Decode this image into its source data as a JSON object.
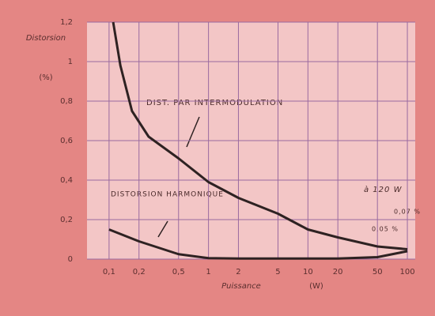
{
  "chart_data": {
    "type": "line",
    "y_label_top": "Distorsion",
    "y_label_unit": "(%)",
    "x_label": "Puissance",
    "x_label_unit": "(W)",
    "xscale": "log",
    "grid": true,
    "xlim": [
      0.06,
      120
    ],
    "ylim": [
      0,
      1.2
    ],
    "xticks": [
      {
        "value": 0.1,
        "label": "0,1"
      },
      {
        "value": 0.2,
        "label": "0,2"
      },
      {
        "value": 0.5,
        "label": "0,5"
      },
      1,
      2,
      5,
      10,
      20,
      50,
      100
    ],
    "yticks": [
      0,
      {
        "value": 0.2,
        "label": "0,2"
      },
      {
        "value": 0.4,
        "label": "0,4"
      },
      {
        "value": 0.6,
        "label": "0,6"
      },
      {
        "value": 0.8,
        "label": "0,8"
      },
      1,
      {
        "value": 1.2,
        "label": "1,2"
      }
    ],
    "series": [
      {
        "name": "DIST. PAR INTERMODULATION",
        "color": "#2e2222",
        "x": [
          0.11,
          0.13,
          0.17,
          0.25,
          0.5,
          1,
          2,
          5,
          10,
          20,
          50,
          100
        ],
        "values": [
          1.2,
          0.98,
          0.75,
          0.62,
          0.51,
          0.39,
          0.31,
          0.23,
          0.15,
          0.11,
          0.064,
          0.05
        ]
      },
      {
        "name": "DISTORSION HARMONIQUE",
        "color": "#2e2222",
        "x": [
          0.1,
          0.2,
          0.5,
          1,
          2,
          5,
          10,
          20,
          50,
          100
        ],
        "values": [
          0.15,
          0.09,
          0.025,
          0.005,
          0.003,
          0.003,
          0.003,
          0.003,
          0.01,
          0.04
        ]
      }
    ],
    "annotations": [
      "à 120 W",
      "0,07 %",
      "0,05 %"
    ]
  }
}
